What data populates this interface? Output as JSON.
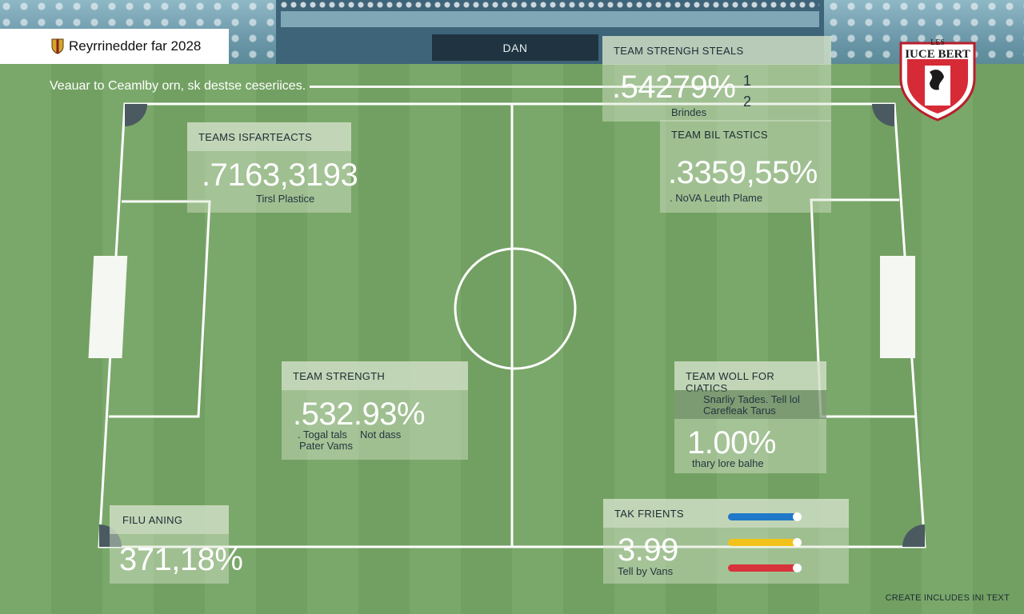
{
  "header": {
    "title": "Reyrrinedder far 2028",
    "tab": "DAN",
    "subtitle": "Veauar to Ceamlby orn, sk destse ceseriices."
  },
  "panels": {
    "top_right": {
      "heading": "TEAM STRENGH STEALS",
      "value": ".54279%",
      "caption": "Brindes",
      "side_1": "1",
      "side_2": "2"
    },
    "top_left": {
      "heading": "TEAMS ISFARTEACTS",
      "value": ".7163,3193",
      "caption": "Tirsl Plastice"
    },
    "mid_right": {
      "heading": "TEAM BIL TASTICS",
      "value": ".3359,55%",
      "caption": ". NoVA Leuth Plame"
    },
    "center": {
      "heading": "TEAM STRENGTH",
      "value": ".532.93%",
      "caption_1": ". Togal tals",
      "caption_2": "Not dass",
      "caption_3": "Pater Vams"
    },
    "lower_right": {
      "heading": "TEAM WOLL FOR CIATICS",
      "sub_1": "Snarliy Tades. Tell lol",
      "sub_2": "Carefleak Tarus",
      "value": "1.00%",
      "caption": "thary lore balhe"
    },
    "bottom_left": {
      "heading": "FILU ANING",
      "value": "371,18%"
    },
    "bottom_right": {
      "heading": "TAK FRIENTS",
      "value": "3.99",
      "caption": "Tell by Vans",
      "sliders": [
        {
          "color": "#1f78c8",
          "level": 0.93
        },
        {
          "color": "#f2c21b",
          "level": 0.93
        },
        {
          "color": "#d8323b",
          "level": 0.93
        }
      ]
    }
  },
  "badge": {
    "top_text": "LES",
    "name": "IUCE BERT",
    "color": "#d62b36"
  },
  "footer": "CREATE INCLUDES INI TEXT",
  "colors": {
    "pitch": "#76a565",
    "line": "#ffffff",
    "panel_tint": "#d6e4cd",
    "tab_dark": "#1f3440"
  }
}
